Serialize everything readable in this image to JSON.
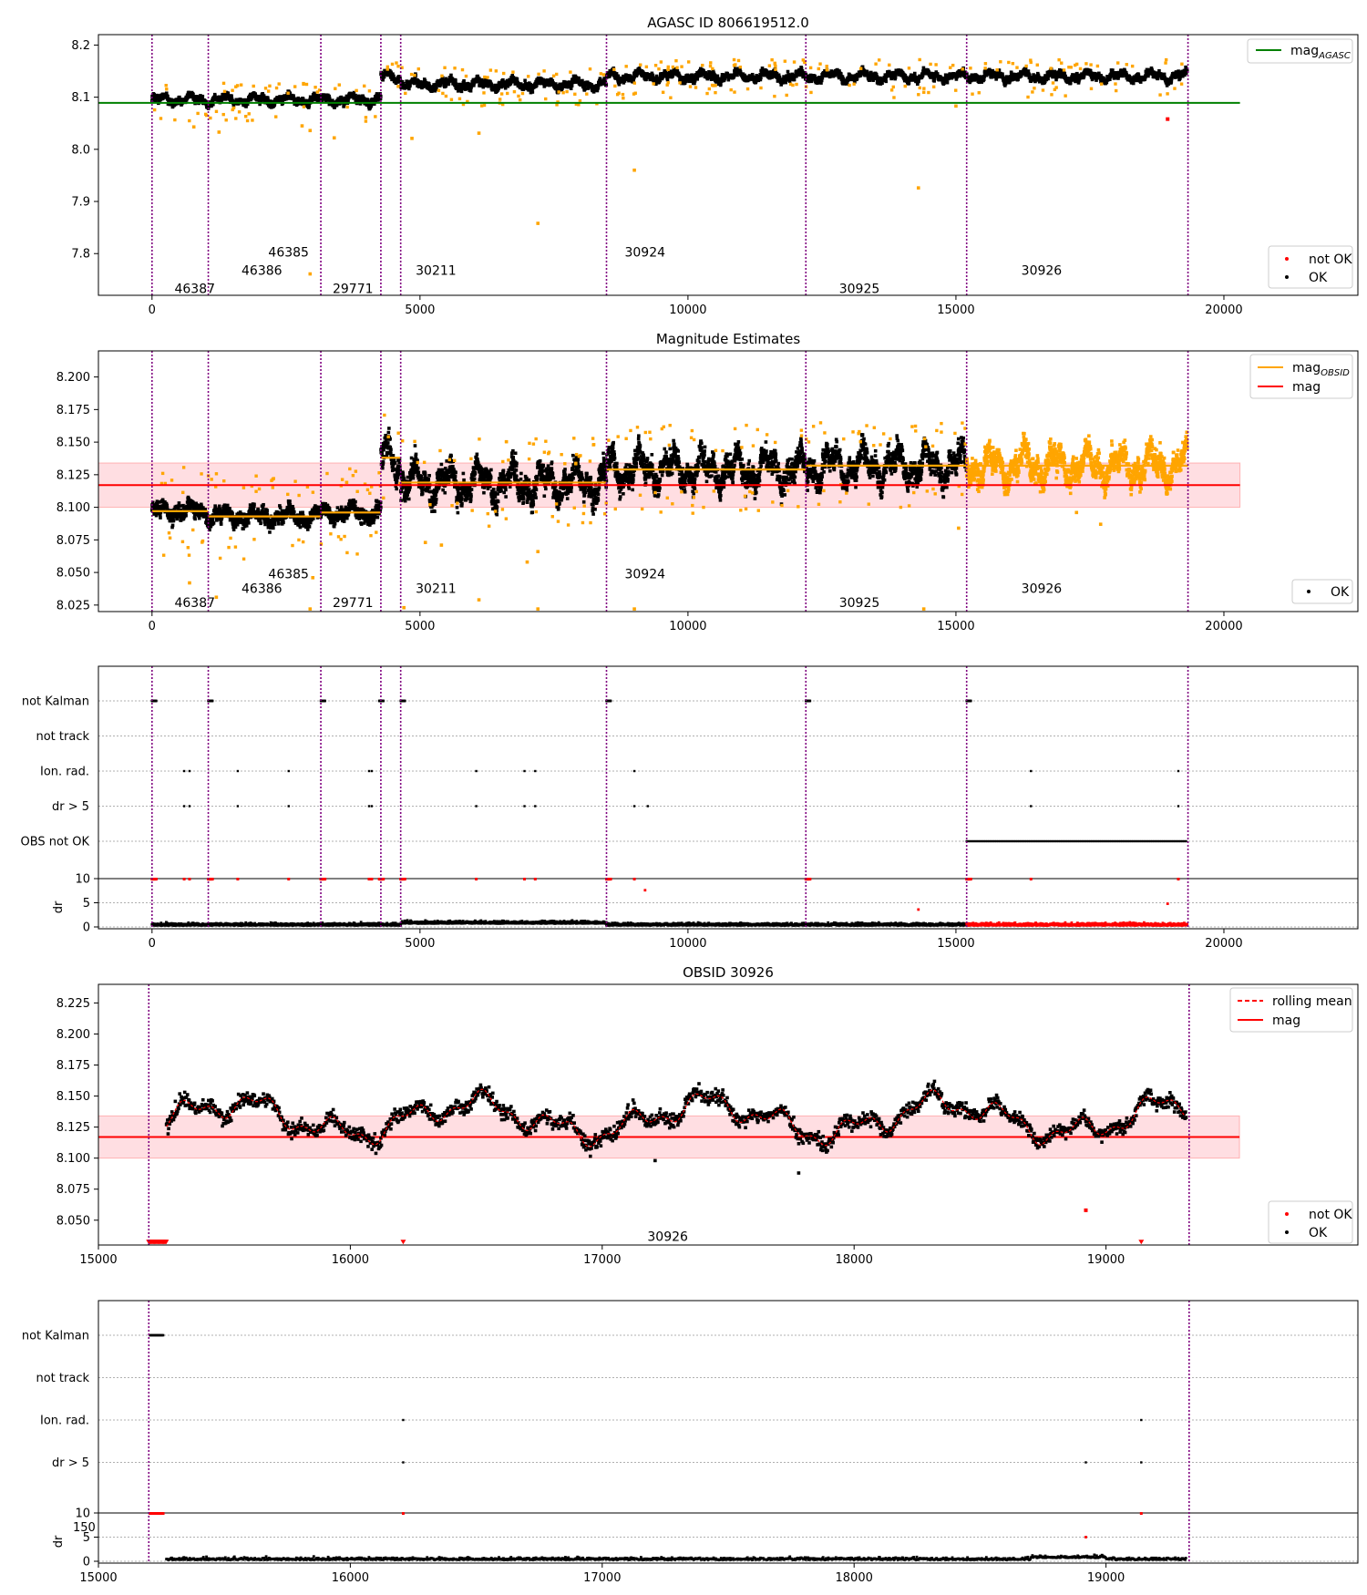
{
  "colors": {
    "ok": "#000000",
    "not_ok": "#ff0000",
    "orange": "#ffa500",
    "agasc_line": "#008000",
    "mag_line": "#ff0000",
    "band_fill": "#ffd0d6",
    "obsid_line": "#800080",
    "grid": "#b0b0b0"
  },
  "chart_data": [
    {
      "type": "scatter",
      "title": "AGASC ID 806619512.0",
      "xlim": [
        -1000,
        22500
      ],
      "ylim": [
        7.72,
        8.22
      ],
      "x_ticks": [
        "0",
        "5000",
        "10000",
        "15000",
        "20000"
      ],
      "y_ticks": [
        "7.8",
        "7.9",
        "8.0",
        "8.1",
        "8.2"
      ],
      "obsid_boundaries": [
        0,
        1050,
        3150,
        4270,
        4640,
        8480,
        12200,
        15200,
        19330
      ],
      "obsid_labels": [
        "46387",
        "46386",
        "46385",
        "29771",
        "30211",
        "30924",
        "30925",
        "30926"
      ],
      "mag_agasc": 8.089,
      "segment_levels": [
        8.095,
        8.095,
        8.095,
        8.14,
        8.125,
        8.14,
        8.14,
        8.14
      ],
      "legend_top": [
        "mag_AGASC"
      ],
      "legend_bottom": [
        "not OK",
        "OK"
      ]
    },
    {
      "type": "scatter",
      "title": "Magnitude Estimates",
      "xlim": [
        -1000,
        22500
      ],
      "ylim": [
        8.02,
        8.22
      ],
      "x_ticks": [
        "0",
        "5000",
        "10000",
        "15000",
        "20000"
      ],
      "y_ticks": [
        "8.025",
        "8.050",
        "8.075",
        "8.100",
        "8.125",
        "8.150",
        "8.175",
        "8.200"
      ],
      "mag": 8.117,
      "mag_band": [
        8.1,
        8.134
      ],
      "mag_obsid": [
        8.097,
        8.093,
        8.096,
        8.138,
        8.119,
        8.129,
        8.132,
        8.132
      ],
      "legend_top": [
        "mag_OBSID",
        "mag"
      ],
      "legend_bottom": [
        "OK"
      ]
    },
    {
      "type": "scatter",
      "title": "",
      "flag_rows": [
        "not Kalman",
        "not track",
        "Ion. rad.",
        "dr > 5",
        "OBS not OK"
      ],
      "x_ticks": [
        "0",
        "5000",
        "10000",
        "15000",
        "20000"
      ],
      "dr_ylabel": "dr",
      "dr_ticks": [
        "0",
        "5",
        "10"
      ]
    },
    {
      "type": "scatter",
      "title": "OBSID 30926",
      "xlim": [
        15000,
        20000
      ],
      "ylim": [
        8.03,
        8.24
      ],
      "x_ticks": [
        "15000",
        "16000",
        "17000",
        "18000",
        "19000"
      ],
      "y_ticks": [
        "8.050",
        "8.075",
        "8.100",
        "8.125",
        "8.150",
        "8.175",
        "8.200",
        "8.225"
      ],
      "obsid_label": "30926",
      "mag": 8.117,
      "mag_band": [
        8.1,
        8.134
      ],
      "legend_top": [
        "rolling mean",
        "mag"
      ],
      "legend_bottom": [
        "not OK",
        "OK"
      ]
    },
    {
      "type": "scatter",
      "title": "",
      "flag_rows": [
        "not Kalman",
        "not track",
        "Ion. rad.",
        "dr > 5"
      ],
      "x_ticks": [
        "15000",
        "16000",
        "17000",
        "18000",
        "19000"
      ],
      "dr_ylabel": "dr",
      "dr_ticks": [
        "0",
        "5",
        "10"
      ],
      "stray_label": "150"
    }
  ]
}
